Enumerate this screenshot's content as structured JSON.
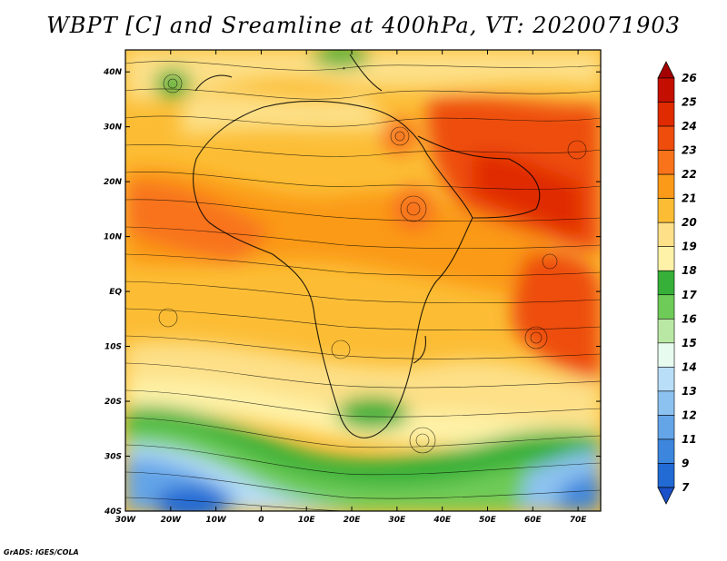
{
  "title": "WBPT [C] and Sreamline at 400hPa, VT: 2020071903",
  "credit": "GrADS: IGES/COLA",
  "map": {
    "lon_labels": [
      "30W",
      "20W",
      "10W",
      "0",
      "10E",
      "20E",
      "30E",
      "40E",
      "50E",
      "60E",
      "70E"
    ],
    "lat_labels": [
      "40N",
      "30N",
      "20N",
      "10N",
      "EQ",
      "10S",
      "20S",
      "30S",
      "40S"
    ],
    "lon_range": [
      -30,
      75
    ],
    "lat_range": [
      -40,
      44
    ]
  },
  "colorbar": {
    "labels": [
      "26",
      "25",
      "24",
      "23",
      "22",
      "21",
      "20",
      "19",
      "18",
      "17",
      "16",
      "15",
      "14",
      "13",
      "12",
      "11",
      "9",
      "7"
    ],
    "colors": [
      "#a50000",
      "#c40f00",
      "#e02a00",
      "#ee4d0c",
      "#f8731a",
      "#fb9a18",
      "#fcbd35",
      "#fde088",
      "#fef2a8",
      "#36b038",
      "#6ecb57",
      "#b9e8a4",
      "#e8fbef",
      "#b8def8",
      "#8cc2f0",
      "#64a5e8",
      "#3d86dd",
      "#226ad4",
      "#1a50c8"
    ]
  },
  "chart_data": {
    "type": "heatmap",
    "title": "WBPT [C] and Sreamline at 400hPa, VT: 2020071903",
    "x_ticks": [
      "30W",
      "20W",
      "10W",
      "0",
      "10E",
      "20E",
      "30E",
      "40E",
      "50E",
      "60E",
      "70E"
    ],
    "y_ticks": [
      "40N",
      "30N",
      "20N",
      "10N",
      "EQ",
      "10S",
      "20S",
      "30S",
      "40S"
    ],
    "xlim": [
      -30,
      75
    ],
    "ylim": [
      -40,
      44
    ],
    "colorbar_levels": [
      7,
      9,
      11,
      12,
      13,
      14,
      15,
      16,
      17,
      18,
      19,
      20,
      21,
      22,
      23,
      24,
      25,
      26
    ]
  }
}
